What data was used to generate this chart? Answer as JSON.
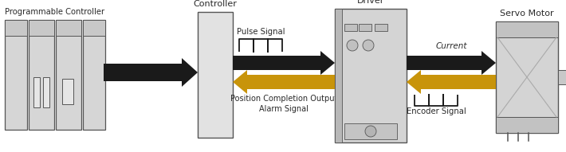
{
  "bg_color": "#ffffff",
  "text_color": "#2a2a2a",
  "arrow_black": "#1a1a1a",
  "arrow_gold": "#c8940a",
  "box_fill": "#d4d4d4",
  "box_edge": "#777777",
  "dark_edge": "#555555",
  "figsize": [
    7.1,
    1.91
  ],
  "dpi": 100,
  "components": {
    "plc_label": "Programmable Controller",
    "controller_label": "Controller",
    "driver_label": "Driver",
    "motor_label": "Servo Motor",
    "pulse_label": "Pulse Signal",
    "position_label": "Position Completion Output\nAlarm Signal",
    "current_label": "Current",
    "encoder_label": "Encoder Signal"
  }
}
